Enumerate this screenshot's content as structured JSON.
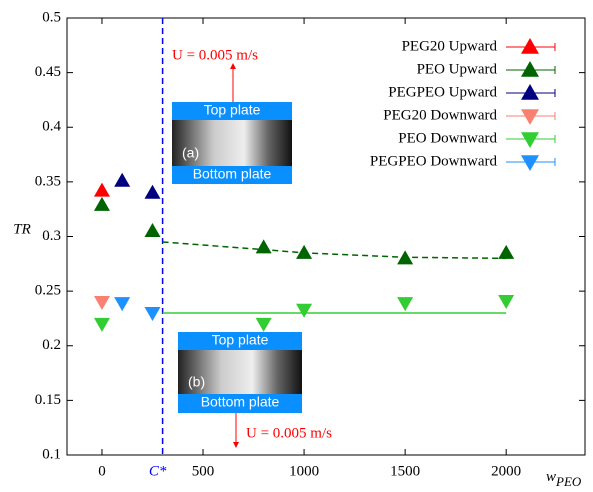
{
  "chart_data": {
    "type": "scatter",
    "xlabel": "w",
    "xlabel_subscript": "PEO",
    "ylabel": "TR",
    "xlim": [
      -173,
      2390
    ],
    "ylim": [
      0.1,
      0.5
    ],
    "xticks": [
      0,
      {
        "value": 300,
        "label": "C*"
      },
      500,
      1000,
      1500,
      2000
    ],
    "yticks": [
      0.1,
      0.15,
      0.2,
      0.25,
      0.3,
      0.35,
      0.4,
      0.45,
      0.5
    ],
    "vline_color": "#0000ff",
    "series": [
      {
        "name": "PEG20 Upward",
        "color": "#ff0000",
        "marker": "up",
        "x": [
          0
        ],
        "values": [
          0.342
        ]
      },
      {
        "name": "PEO Upward",
        "color": "#006400",
        "marker": "up",
        "x": [
          0,
          250,
          800,
          1000,
          1500,
          2000
        ],
        "values": [
          0.329,
          0.305,
          0.29,
          0.285,
          0.28,
          0.285
        ]
      },
      {
        "name": "PEGPEO Upward",
        "color": "#000080",
        "marker": "up",
        "x": [
          100,
          250
        ],
        "values": [
          0.351,
          0.34
        ]
      },
      {
        "name": "PEG20 Downward",
        "color": "#fa8072",
        "marker": "down",
        "x": [
          0
        ],
        "values": [
          0.24
        ]
      },
      {
        "name": "PEO Downward",
        "color": "#32cd32",
        "marker": "down",
        "x": [
          0,
          800,
          1000,
          1500,
          2000
        ],
        "values": [
          0.22,
          0.22,
          0.233,
          0.239,
          0.241
        ]
      },
      {
        "name": "PEGPEO Downward",
        "color": "#1e90ff",
        "marker": "down",
        "x": [
          100,
          250
        ],
        "values": [
          0.239,
          0.23
        ]
      }
    ],
    "fit_lines": [
      {
        "color": "#006400",
        "dashed": true,
        "x": [
          300,
          800,
          1000,
          1500,
          2000
        ],
        "values": [
          0.295,
          0.288,
          0.285,
          0.281,
          0.28
        ]
      },
      {
        "color": "#32cd32",
        "dashed": false,
        "x": [
          300,
          2000
        ],
        "values": [
          0.23,
          0.23
        ]
      }
    ],
    "annotations": {
      "speed_top": "U = 0.005 m/s",
      "speed_bottom": "U = 0.005 m/s",
      "top_plate_a": "Top plate",
      "label_a": "(a)",
      "bottom_plate_a": "Bottom plate",
      "top_plate_b": "Top plate",
      "label_b": "(b)",
      "bottom_plate_b": "Bottom plate"
    }
  }
}
